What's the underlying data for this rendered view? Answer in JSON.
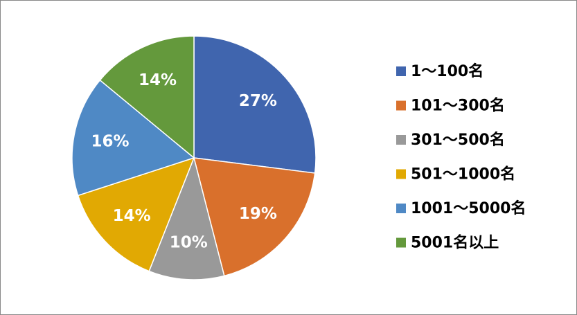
{
  "chart_data": {
    "type": "pie",
    "categories": [
      "1～100名",
      "101～300名",
      "301～500名",
      "501～1000名",
      "1001～5000名",
      "5001名以上"
    ],
    "values": [
      27,
      19,
      10,
      14,
      16,
      14
    ],
    "value_labels": [
      "27%",
      "19%",
      "10%",
      "14%",
      "16%",
      "14%"
    ],
    "colors": [
      "#4065ae",
      "#d9702c",
      "#999999",
      "#e1a903",
      "#4f89c5",
      "#64993c"
    ],
    "legend": "right"
  }
}
